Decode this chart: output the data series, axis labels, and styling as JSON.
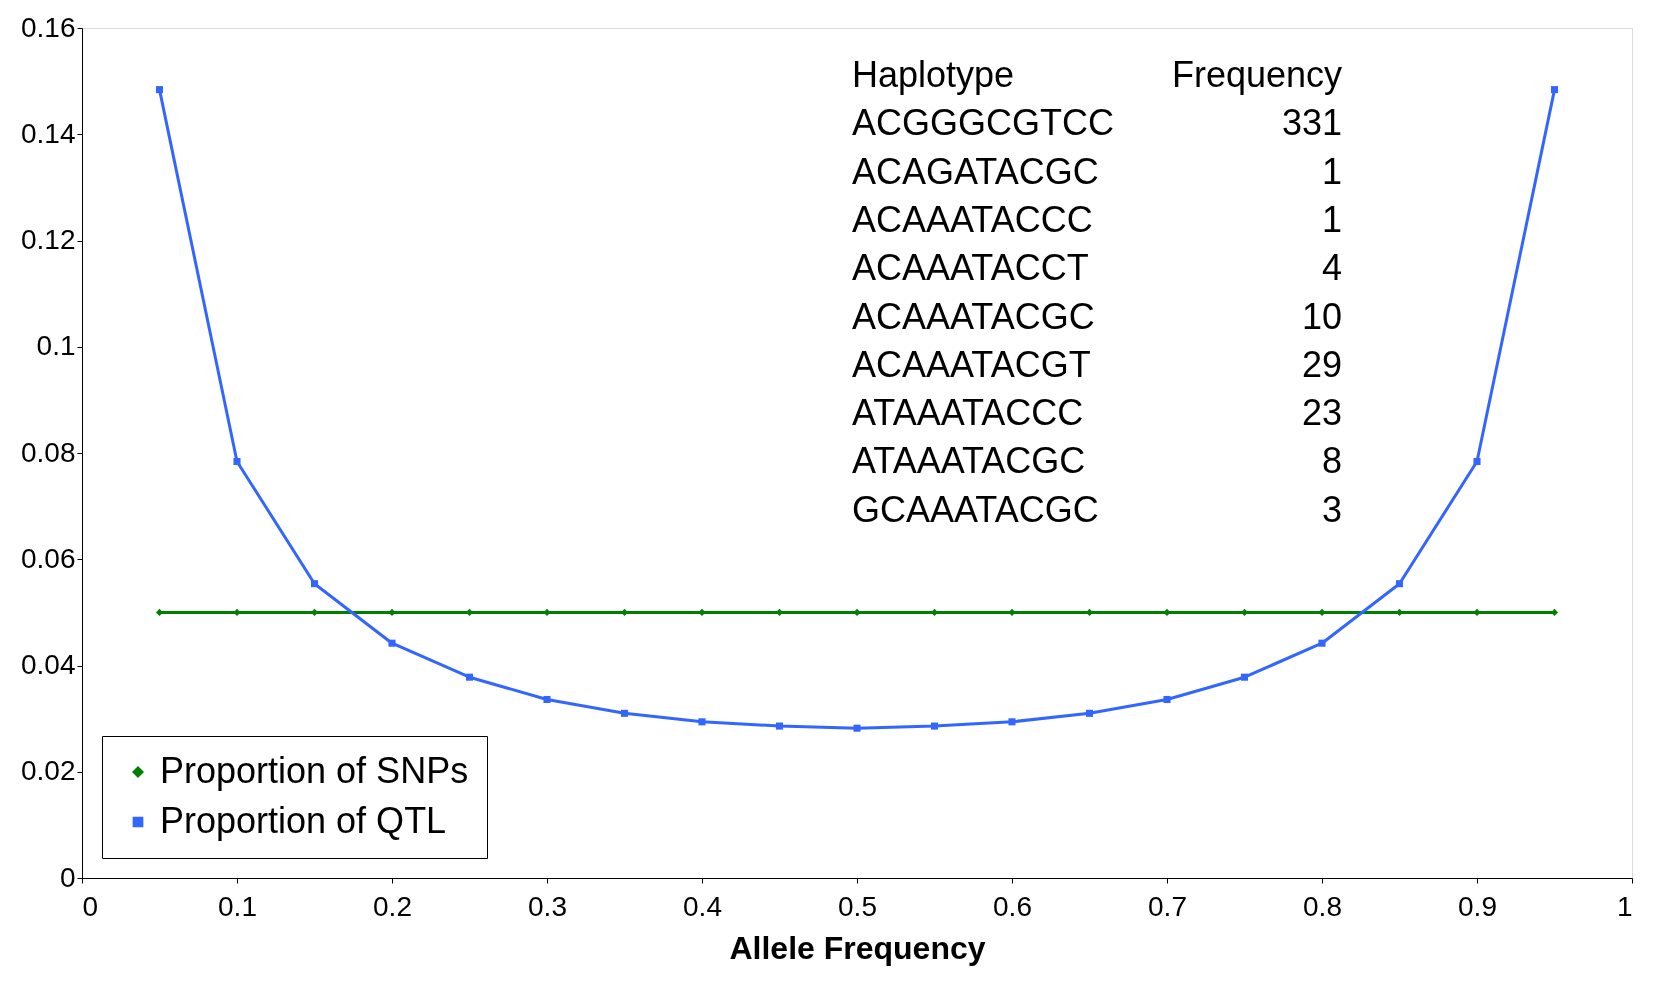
{
  "chart_data": {
    "type": "line",
    "xlabel": "Allele Frequency",
    "x": [
      0.05,
      0.1,
      0.15,
      0.2,
      0.25,
      0.3,
      0.35,
      0.4,
      0.45,
      0.5,
      0.55,
      0.6,
      0.65,
      0.7,
      0.75,
      0.8,
      0.85,
      0.9,
      0.95
    ],
    "series": [
      {
        "name": "Proportion of SNPs",
        "color": "#008000",
        "marker": "diamond",
        "values": [
          0.05,
          0.05,
          0.05,
          0.05,
          0.05,
          0.05,
          0.05,
          0.05,
          0.05,
          0.05,
          0.05,
          0.05,
          0.05,
          0.05,
          0.05,
          0.05,
          0.05,
          0.05,
          0.05
        ]
      },
      {
        "name": "Proportion of QTL",
        "color": "#3366ff",
        "marker": "square",
        "values": [
          0.1484,
          0.0784,
          0.0554,
          0.0442,
          0.0378,
          0.0336,
          0.031,
          0.0294,
          0.0286,
          0.0282,
          0.0286,
          0.0294,
          0.031,
          0.0336,
          0.0378,
          0.0442,
          0.0554,
          0.0784,
          0.1484
        ]
      }
    ],
    "xlim": [
      0,
      1
    ],
    "xticks": [
      0,
      0.1,
      0.2,
      0.3,
      0.4,
      0.5,
      0.6,
      0.7,
      0.8,
      0.9,
      1
    ],
    "ylim": [
      0,
      0.16
    ],
    "yticks": [
      0,
      0.02,
      0.04,
      0.06,
      0.08,
      0.1,
      0.12,
      0.14,
      0.16
    ],
    "grid": false,
    "legend": "bottom left",
    "line_style": "solid",
    "annotations": [
      "Haplotype",
      "Frequency",
      "ACGGGCGTCC",
      "331",
      "ACAGATACGC",
      "1",
      "ACAAATACCC",
      "1",
      "ACAAATACCT",
      "4",
      "ACAAATACGC",
      "10",
      "ACAAATACGT",
      "29",
      "ATAAATACCC",
      "23",
      "ATAAATACGC",
      "8",
      "GCAAATACGC",
      "3"
    ]
  }
}
